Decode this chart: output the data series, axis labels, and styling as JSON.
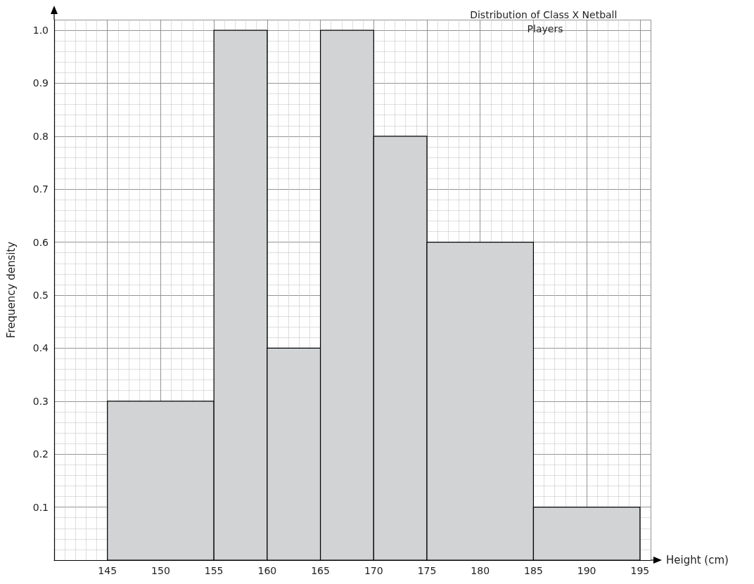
{
  "chart_data": {
    "type": "histogram",
    "title": "Distribution of Class X Netball Players",
    "xlabel": "Height (cm)",
    "ylabel": "Frequency density",
    "bins": [
      145,
      155,
      160,
      165,
      170,
      175,
      185,
      195
    ],
    "values": [
      0.3,
      1.0,
      0.4,
      1.0,
      0.8,
      0.6,
      0.1
    ],
    "color": "#d1d3d4",
    "xlim": [
      140,
      196
    ],
    "xticks": [
      145,
      150,
      155,
      160,
      165,
      170,
      175,
      180,
      185,
      190,
      195
    ],
    "ylim": [
      0,
      1.02
    ],
    "yticks": [
      0.1,
      0.2,
      0.3,
      0.4,
      0.5,
      0.6,
      0.7,
      0.8,
      0.9,
      {
        "value": 1,
        "label": "1.0"
      }
    ],
    "grid": true
  }
}
